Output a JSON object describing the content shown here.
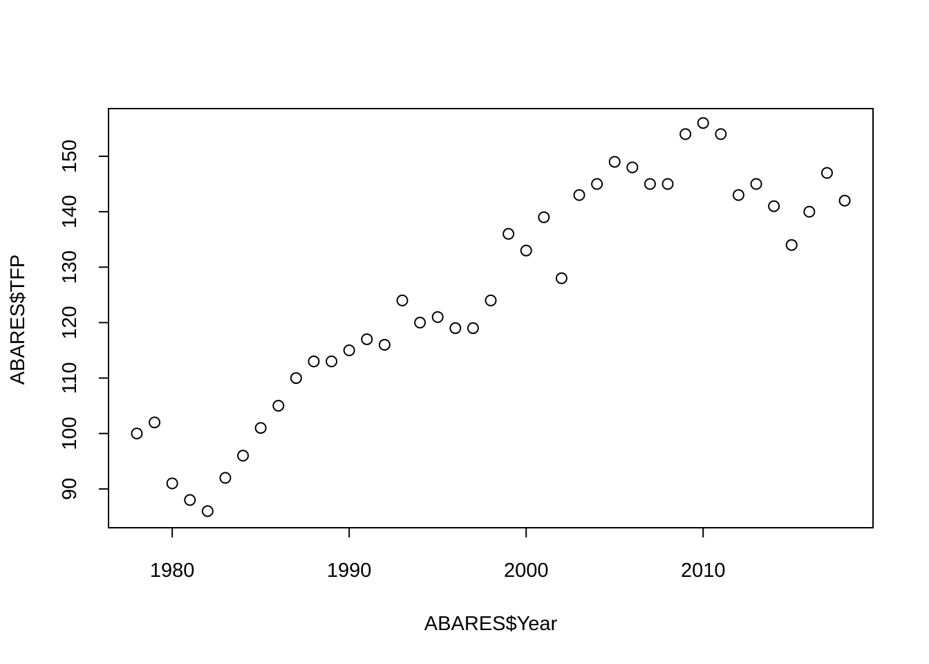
{
  "chart_data": {
    "type": "scatter",
    "title": "",
    "xlabel": "ABARES$Year",
    "ylabel": "ABARES$TFP",
    "xlim": [
      1976.4,
      2019.6
    ],
    "ylim": [
      83.0,
      158.6
    ],
    "xticks": [
      1980,
      1990,
      2000,
      2010
    ],
    "yticks": [
      90,
      100,
      110,
      120,
      130,
      140,
      150
    ],
    "grid": false,
    "legend": "none",
    "marker": "open-circle",
    "series": [
      {
        "x": [
          1978,
          1979,
          1980,
          1981,
          1982,
          1983,
          1984,
          1985,
          1986,
          1987,
          1988,
          1989,
          1990,
          1991,
          1992,
          1993,
          1994,
          1995,
          1996,
          1997,
          1998,
          1999,
          2000,
          2001,
          2002,
          2003,
          2004,
          2005,
          2006,
          2007,
          2008,
          2009,
          2010,
          2011,
          2012,
          2013,
          2014,
          2015,
          2016,
          2017,
          2018
        ],
        "y": [
          100,
          102,
          91,
          88,
          86,
          92,
          96,
          101,
          105,
          110,
          113,
          113,
          115,
          117,
          116,
          124,
          120,
          121,
          119,
          119,
          124,
          136,
          133,
          139,
          128,
          143,
          145,
          149,
          148,
          145,
          145,
          154,
          156,
          154,
          143,
          145,
          141,
          134,
          140,
          147,
          142
        ]
      }
    ]
  }
}
